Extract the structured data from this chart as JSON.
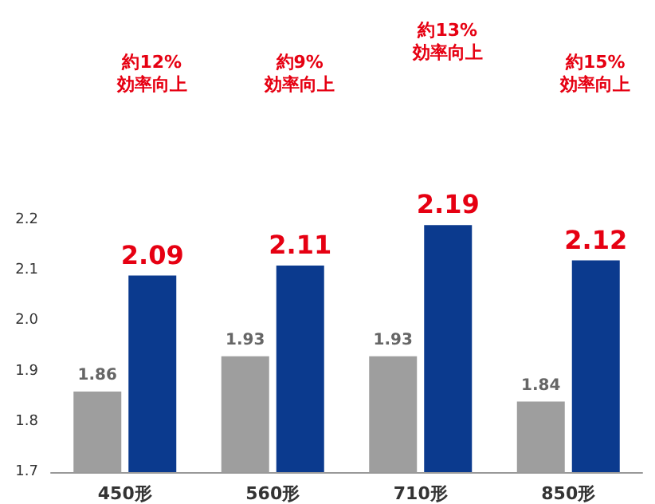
{
  "chart_data": {
    "type": "bar",
    "categories": [
      "450形",
      "560形",
      "710形",
      "850形"
    ],
    "series": [
      {
        "color": "#9e9e9e",
        "values": [
          1.86,
          1.93,
          1.93,
          1.84
        ]
      },
      {
        "color": "#0b3a8e",
        "values": [
          2.09,
          2.11,
          2.19,
          2.12
        ]
      }
    ],
    "ylim": [
      1.7,
      2.2
    ],
    "yticks": [
      1.7,
      1.8,
      1.9,
      {
        "value": 2,
        "label": "2.0"
      },
      2.1,
      2.2
    ],
    "data_labels": true,
    "annotations": [
      "約12%\n効率向上",
      "約9%\n効率向上",
      "約13%\n効率向上",
      "約15%\n効率向上"
    ]
  }
}
